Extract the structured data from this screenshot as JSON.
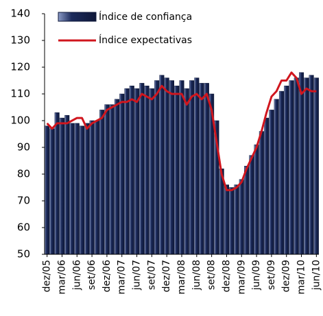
{
  "chart_data": {
    "type": "bar",
    "categories": [
      "dez/05",
      null,
      null,
      "mar/06",
      null,
      null,
      "jun/06",
      null,
      null,
      "set/06",
      null,
      null,
      "dez/06",
      null,
      null,
      "mar/07",
      null,
      null,
      "jun/07",
      null,
      null,
      "set/07",
      null,
      null,
      "dez/07",
      null,
      null,
      "mar/08",
      null,
      null,
      "jun/08",
      null,
      null,
      "set/08",
      null,
      null,
      "dez/08",
      null,
      null,
      "mar/09",
      null,
      null,
      "jun/09",
      null,
      null,
      "set/09",
      null,
      null,
      "dez/09",
      null,
      null,
      "mar/10",
      null,
      null,
      "jun/10"
    ],
    "series": [
      {
        "name": "Índice de confiança",
        "type": "bar",
        "color": "#1c2b5c",
        "values": [
          98,
          97,
          103,
          101,
          102,
          99,
          99,
          98,
          99,
          100,
          100,
          104,
          106,
          106,
          108,
          110,
          112,
          113,
          112,
          114,
          113,
          112,
          115,
          117,
          116,
          115,
          113,
          115,
          112,
          115,
          116,
          114,
          114,
          110,
          100,
          82,
          76,
          75,
          76,
          78,
          83,
          87,
          91,
          96,
          101,
          104,
          108,
          111,
          113,
          115,
          116,
          118,
          116,
          117,
          116
        ]
      },
      {
        "name": "Índice expectativas",
        "type": "line",
        "color": "#d0161e",
        "values": [
          99,
          97,
          99,
          99,
          99,
          100,
          101,
          101,
          97,
          99,
          100,
          101,
          104,
          105,
          106,
          107,
          107,
          108,
          107,
          110,
          109,
          108,
          110,
          113,
          111,
          110,
          110,
          110,
          106,
          109,
          110,
          108,
          110,
          104,
          92,
          80,
          74,
          74,
          75,
          77,
          82,
          86,
          90,
          96,
          103,
          109,
          111,
          115,
          115,
          118,
          116,
          110,
          112,
          111,
          111
        ]
      }
    ],
    "ylim": [
      50,
      140
    ],
    "yticks": [
      50,
      60,
      70,
      80,
      90,
      100,
      110,
      120,
      130,
      140
    ],
    "grid": false,
    "legend": "top-left"
  }
}
